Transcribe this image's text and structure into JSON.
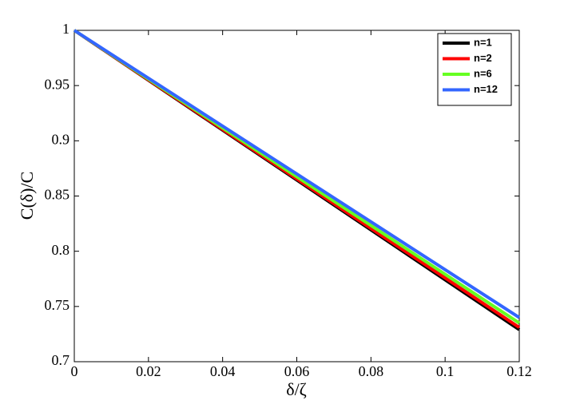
{
  "chart_data": {
    "type": "line",
    "x_label": "δ/ζ",
    "y_label": "C(δ)/C",
    "x": [
      0,
      0.12
    ],
    "series": [
      {
        "name": "n=1",
        "color": "#000000",
        "values": [
          1,
          0.729
        ]
      },
      {
        "name": "n=2",
        "color": "#ff0000",
        "values": [
          1,
          0.731
        ]
      },
      {
        "name": "n=6",
        "color": "#66ff22",
        "values": [
          1,
          0.735
        ]
      },
      {
        "name": "n=12",
        "color": "#3366ff",
        "values": [
          1,
          0.74
        ]
      }
    ],
    "xlim": [
      0,
      0.12
    ],
    "xticks": [
      0,
      0.02,
      0.04,
      0.06,
      0.08,
      0.1,
      0.12
    ],
    "ylim": [
      0.7,
      1
    ],
    "yticks": [
      0.7,
      0.75,
      0.8,
      0.85,
      0.9,
      0.95,
      1
    ],
    "legend": "upper-right",
    "grid": false
  }
}
